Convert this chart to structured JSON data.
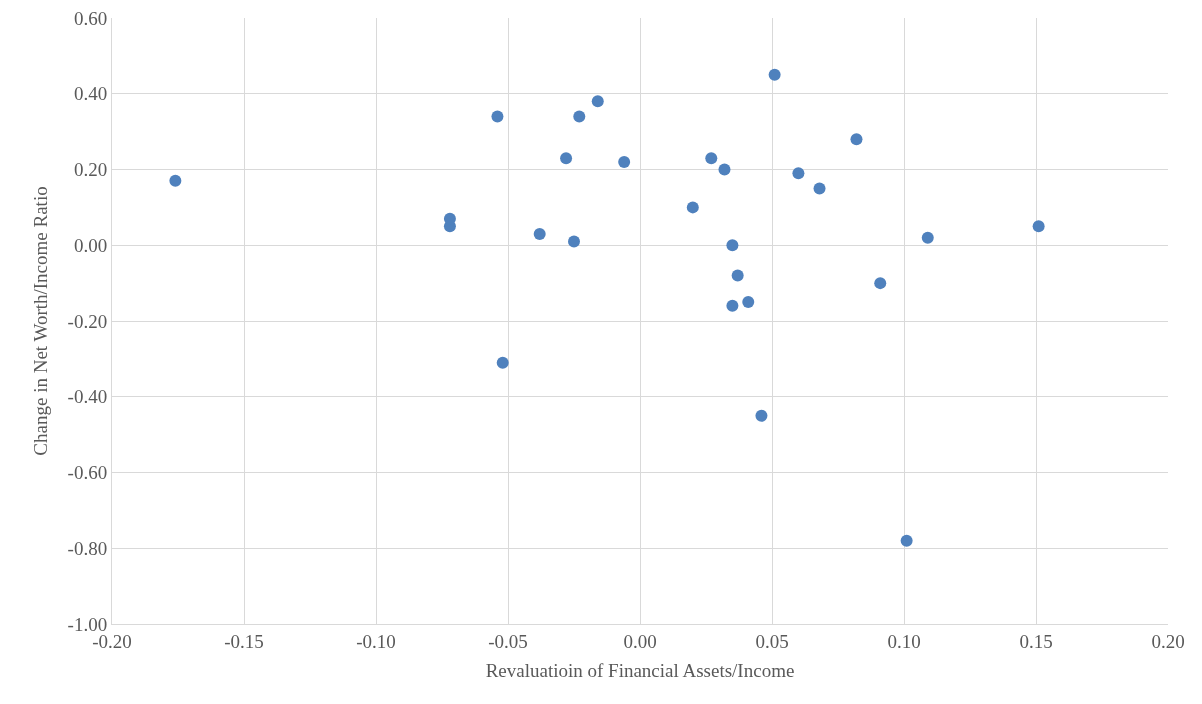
{
  "chart_data": {
    "type": "scatter",
    "xlabel": "Revaluatioin of Financial Assets/Income",
    "ylabel": "Change in Net Worth/Income Ratio",
    "x": [
      -0.176,
      -0.072,
      -0.072,
      -0.054,
      -0.052,
      -0.038,
      -0.028,
      -0.025,
      -0.023,
      -0.016,
      -0.006,
      0.02,
      0.027,
      0.032,
      0.035,
      0.037,
      0.035,
      0.041,
      0.046,
      0.051,
      0.06,
      0.068,
      0.082,
      0.091,
      0.101,
      0.109,
      0.151
    ],
    "series": [
      {
        "color": "#4f81bd",
        "values": [
          0.17,
          0.05,
          0.07,
          0.34,
          -0.31,
          0.03,
          0.23,
          0.01,
          0.34,
          0.38,
          0.22,
          0.1,
          0.23,
          0.2,
          0.0,
          -0.08,
          -0.16,
          -0.15,
          -0.45,
          0.45,
          0.19,
          0.15,
          0.28,
          -0.1,
          -0.78,
          0.02,
          0.05
        ]
      }
    ],
    "xlim": [
      -0.2,
      0.2
    ],
    "xticks": [
      {
        "value": -0.2,
        "label": "-0.20"
      },
      {
        "value": -0.15,
        "label": "-0.15"
      },
      {
        "value": -0.1,
        "label": "-0.10"
      },
      {
        "value": -0.05,
        "label": "-0.05"
      },
      {
        "value": 0,
        "label": "0.00"
      },
      {
        "value": 0.05,
        "label": "0.05"
      },
      {
        "value": 0.1,
        "label": "0.10"
      },
      {
        "value": 0.15,
        "label": "0.15"
      },
      {
        "value": 0.2,
        "label": "0.20"
      }
    ],
    "ylim": [
      -1,
      0.6
    ],
    "yticks": [
      {
        "value": -1,
        "label": "-1.00"
      },
      {
        "value": -0.8,
        "label": "-0.80"
      },
      {
        "value": -0.6,
        "label": "-0.60"
      },
      {
        "value": -0.4,
        "label": "-0.40"
      },
      {
        "value": -0.2,
        "label": "-0.20"
      },
      {
        "value": 0,
        "label": "0.00"
      },
      {
        "value": 0.2,
        "label": "0.20"
      },
      {
        "value": 0.4,
        "label": "0.40"
      },
      {
        "value": 0.6,
        "label": "0.60"
      }
    ],
    "grid": true,
    "marker": "circle"
  }
}
